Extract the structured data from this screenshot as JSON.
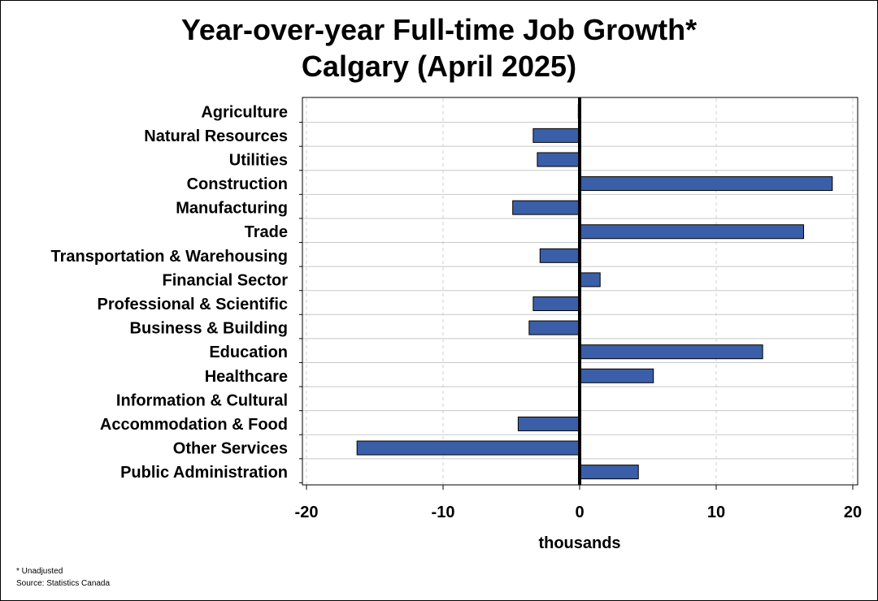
{
  "chart_data": {
    "type": "bar",
    "orientation": "horizontal",
    "title": "Year-over-year Full-time Job Growth*",
    "subtitle": "Calgary (April 2025)",
    "xlabel": "thousands",
    "ylabel": "",
    "xlim": [
      -20,
      20
    ],
    "xticks": [
      -20,
      -10,
      0,
      10,
      20
    ],
    "bar_color": "#3A5FA8",
    "grid": true,
    "categories": [
      "Agriculture",
      "Natural Resources",
      "Utilities",
      "Construction",
      "Manufacturing",
      "Trade",
      "Transportation & Warehousing",
      "Financial Sector",
      "Professional & Scientific",
      "Business & Building",
      "Education",
      "Healthcare",
      "Information & Cultural",
      "Accommodation & Food",
      "Other Services",
      "Public Administration"
    ],
    "values": [
      -0.1,
      -3.4,
      -3.1,
      18.5,
      -4.9,
      16.4,
      -2.9,
      1.5,
      -3.4,
      -3.7,
      13.4,
      5.4,
      0.0,
      -4.5,
      -16.3,
      4.3
    ]
  },
  "footnotes": {
    "note": "* Unadjusted",
    "source": "Source: Statistics Canada"
  }
}
